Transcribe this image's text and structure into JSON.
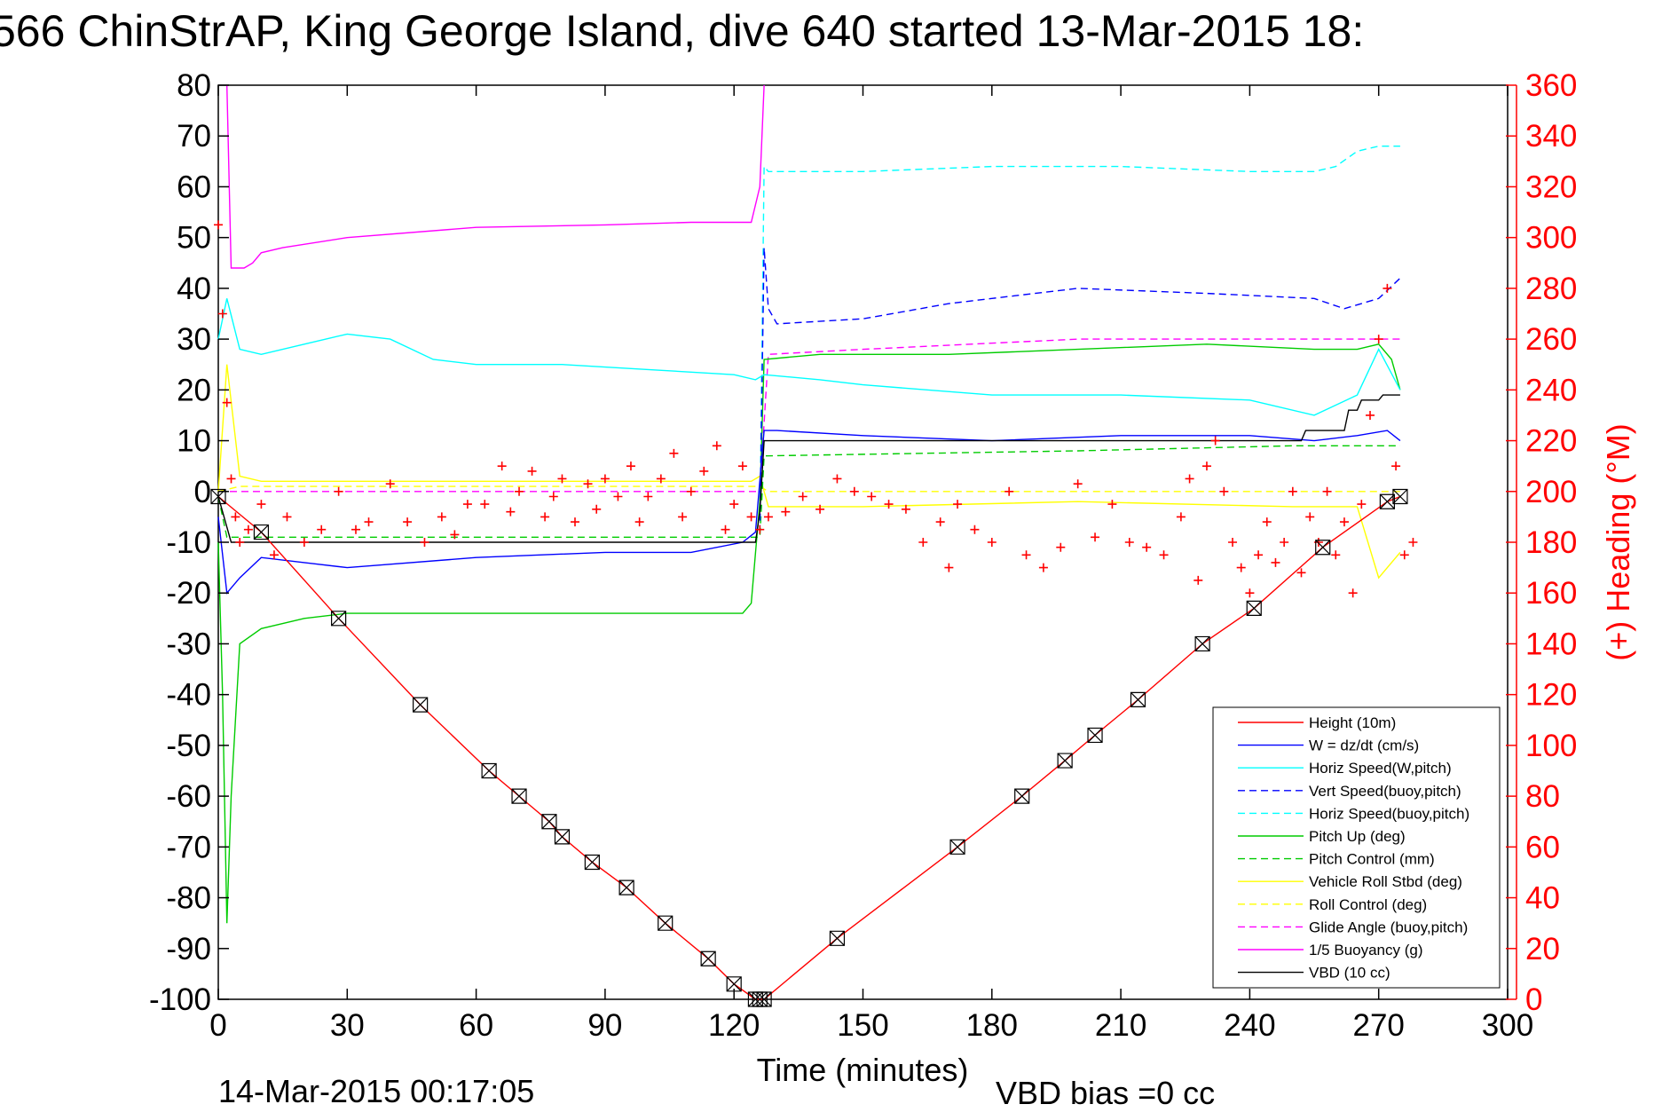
{
  "chart_data": {
    "type": "line",
    "title": "566 ChinStrAP, King George Island, dive 640 started 13-Mar-2015 18:",
    "xlabel": "Time (minutes)",
    "ylabel_right": "(+) Heading (°M)",
    "xlim": [
      0,
      300
    ],
    "ylim": [
      -100,
      80
    ],
    "ylim_right": [
      0,
      360
    ],
    "x_ticks": [
      0,
      30,
      60,
      90,
      120,
      150,
      180,
      210,
      240,
      270,
      300
    ],
    "y_ticks": [
      80,
      70,
      60,
      50,
      40,
      30,
      20,
      10,
      0,
      -10,
      -20,
      -30,
      -40,
      -50,
      -60,
      -70,
      -80,
      -90,
      -100
    ],
    "y_right_ticks": [
      360,
      340,
      320,
      300,
      280,
      260,
      240,
      220,
      200,
      180,
      160,
      140,
      120,
      100,
      80,
      60,
      40,
      20,
      0
    ],
    "footer_left": "14-Mar-2015 00:17:05",
    "footer_right": "VBD bias =0 cc",
    "grid": false,
    "legend_position": "lower-right",
    "series": [
      {
        "name": "Height (10m)",
        "color": "#ff0000",
        "style": "solid",
        "x": [
          0,
          10,
          28,
          47,
          63,
          70,
          77,
          80,
          87,
          95,
          104,
          114,
          120,
          125,
          126,
          127,
          144,
          172,
          187,
          197,
          204,
          214,
          229,
          241,
          257,
          272,
          275
        ],
        "y": [
          -1,
          -8,
          -25,
          -42,
          -55,
          -60,
          -65,
          -68,
          -73,
          -78,
          -85,
          -92,
          -97,
          -100,
          -100,
          -100,
          -88,
          -70,
          -60,
          -53,
          -48,
          -41,
          -30,
          -23,
          -11,
          -2,
          -1
        ]
      },
      {
        "name": "W = dz/dt (cm/s)",
        "color": "#0000ff",
        "style": "solid",
        "x": [
          0,
          2,
          5,
          10,
          20,
          30,
          60,
          90,
          110,
          122,
          125,
          127,
          130,
          150,
          180,
          210,
          240,
          255,
          265,
          272,
          275
        ],
        "y": [
          -5,
          -20,
          -17,
          -13,
          -14,
          -15,
          -13,
          -12,
          -12,
          -10,
          -8,
          12,
          12,
          11,
          10,
          11,
          11,
          10,
          11,
          12,
          10
        ]
      },
      {
        "name": "Horiz Speed(W,pitch)",
        "color": "#00ffff",
        "style": "solid",
        "x": [
          0,
          2,
          5,
          10,
          20,
          30,
          40,
          50,
          60,
          80,
          100,
          120,
          125,
          127,
          140,
          150,
          180,
          210,
          240,
          255,
          260,
          265,
          270,
          275
        ],
        "y": [
          30,
          38,
          28,
          27,
          29,
          31,
          30,
          26,
          25,
          25,
          24,
          23,
          22,
          23,
          22,
          21,
          19,
          19,
          18,
          15,
          17,
          19,
          28,
          20
        ]
      },
      {
        "name": "Vert Speed(buoy,pitch)",
        "color": "#0000ff",
        "style": "dashed",
        "x": [
          126,
          127,
          128,
          130,
          150,
          170,
          180,
          200,
          230,
          255,
          262,
          270,
          275
        ],
        "y": [
          -8,
          48,
          36,
          33,
          34,
          37,
          38,
          40,
          39,
          38,
          36,
          38,
          42
        ]
      },
      {
        "name": "Horiz Speed(buoy,pitch)",
        "color": "#00ffff",
        "style": "dashed",
        "x": [
          126,
          127,
          128,
          150,
          180,
          210,
          240,
          255,
          260,
          265,
          270,
          275
        ],
        "y": [
          -8,
          64,
          63,
          63,
          64,
          64,
          63,
          63,
          64,
          67,
          68,
          68
        ]
      },
      {
        "name": "Pitch Up (deg)",
        "color": "#00cc00",
        "style": "solid",
        "x": [
          0,
          1,
          2,
          3,
          5,
          10,
          20,
          30,
          60,
          90,
          110,
          122,
          124,
          126,
          127,
          140,
          170,
          200,
          230,
          255,
          265,
          270,
          273,
          275
        ],
        "y": [
          -10,
          -40,
          -85,
          -60,
          -30,
          -27,
          -25,
          -24,
          -24,
          -24,
          -24,
          -24,
          -22,
          -2,
          26,
          27,
          27,
          28,
          29,
          28,
          28,
          29,
          26,
          20
        ]
      },
      {
        "name": "Pitch Control (mm)",
        "color": "#00cc00",
        "style": "dashed",
        "x": [
          0,
          2,
          124,
          126,
          127,
          200,
          250,
          270,
          275
        ],
        "y": [
          -1,
          -9,
          -9,
          -9,
          7,
          8,
          9,
          9,
          9
        ]
      },
      {
        "name": "Vehicle Roll Stbd (deg)",
        "color": "#ffff00",
        "style": "solid",
        "x": [
          0,
          2,
          5,
          10,
          60,
          124,
          126,
          128,
          150,
          200,
          250,
          265,
          270,
          275
        ],
        "y": [
          0,
          25,
          3,
          2,
          2,
          2,
          3,
          -3,
          -3,
          -2,
          -3,
          -3,
          -17,
          -12
        ]
      },
      {
        "name": "Roll Control (deg)",
        "color": "#ffff00",
        "style": "dashed",
        "x": [
          0,
          5,
          124,
          126,
          128,
          270,
          275
        ],
        "y": [
          0,
          1,
          1,
          1,
          0,
          0,
          0
        ]
      },
      {
        "name": "Glide Angle (buoy,pitch)",
        "color": "#ff00ff",
        "style": "dashed",
        "x": [
          0,
          2,
          124,
          126,
          128,
          150,
          200,
          250,
          270,
          275
        ],
        "y": [
          0,
          0,
          0,
          0,
          27,
          28,
          30,
          30,
          30,
          30
        ]
      },
      {
        "name": "1/5 Buoyancy (g)",
        "color": "#ff00ff",
        "style": "solid",
        "x": [
          2,
          3,
          6,
          8,
          10,
          15,
          30,
          60,
          90,
          110,
          124,
          126,
          127
        ],
        "y": [
          80,
          44,
          44,
          45,
          47,
          48,
          50,
          52,
          52.5,
          53,
          53,
          60,
          80
        ]
      },
      {
        "name": "VBD (10 cc)",
        "color": "#000000",
        "style": "solid",
        "x": [
          0,
          3,
          124,
          125,
          126,
          127,
          210,
          252,
          253,
          262,
          263,
          265,
          266,
          270,
          271,
          275
        ],
        "y": [
          -1,
          -10,
          -10,
          -10,
          -4,
          10,
          10,
          10,
          12,
          12,
          16,
          16,
          18,
          18,
          19,
          19
        ]
      }
    ],
    "heading_series": {
      "name": "(+) Heading (°M)",
      "color": "#ff0000",
      "marker": "+",
      "x": [
        0,
        1,
        2,
        3,
        4,
        5,
        7,
        10,
        13,
        16,
        20,
        24,
        28,
        32,
        35,
        40,
        44,
        48,
        52,
        55,
        58,
        62,
        66,
        68,
        70,
        73,
        76,
        78,
        80,
        83,
        86,
        88,
        90,
        93,
        96,
        98,
        100,
        103,
        106,
        108,
        110,
        113,
        116,
        118,
        120,
        122,
        124,
        126,
        128,
        132,
        136,
        140,
        144,
        148,
        152,
        156,
        160,
        164,
        168,
        170,
        172,
        176,
        180,
        184,
        188,
        192,
        196,
        200,
        204,
        208,
        212,
        216,
        220,
        224,
        226,
        228,
        230,
        232,
        234,
        236,
        238,
        240,
        242,
        244,
        246,
        248,
        250,
        252,
        254,
        256,
        258,
        260,
        262,
        264,
        266,
        268,
        270,
        272,
        274,
        276,
        278
      ],
      "y": [
        305,
        270,
        235,
        205,
        190,
        180,
        185,
        195,
        175,
        190,
        180,
        185,
        200,
        185,
        188,
        203,
        188,
        180,
        190,
        183,
        195,
        195,
        210,
        192,
        200,
        208,
        190,
        198,
        205,
        188,
        203,
        193,
        205,
        198,
        210,
        188,
        198,
        205,
        215,
        190,
        200,
        208,
        218,
        185,
        195,
        210,
        190,
        185,
        190,
        192,
        198,
        193,
        205,
        200,
        198,
        195,
        193,
        180,
        188,
        170,
        195,
        185,
        180,
        200,
        175,
        170,
        178,
        203,
        182,
        195,
        180,
        178,
        175,
        190,
        205,
        165,
        210,
        220,
        200,
        180,
        170,
        160,
        175,
        188,
        172,
        180,
        200,
        168,
        190,
        180,
        200,
        175,
        188,
        160,
        195,
        230,
        260,
        280,
        210,
        175,
        180
      ]
    }
  }
}
